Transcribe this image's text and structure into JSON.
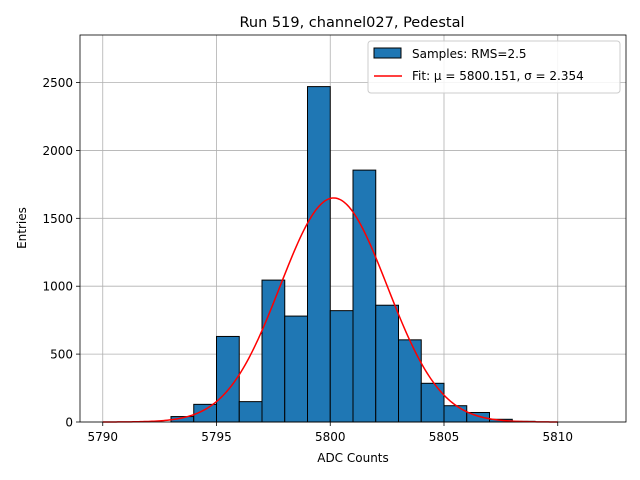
{
  "chart_data": {
    "type": "bar",
    "title": "Run 519, channel027, Pedestal",
    "xlabel": "ADC Counts",
    "ylabel": "Entries",
    "xlim": [
      5789,
      5813
    ],
    "ylim": [
      0,
      2850
    ],
    "xticks": [
      5790,
      5795,
      5800,
      5805,
      5810
    ],
    "yticks": [
      0,
      500,
      1000,
      1500,
      2000,
      2500
    ],
    "grid": true,
    "legend_position": "top-right",
    "bin_width": 1,
    "series": [
      {
        "name": "Samples: RMS=2.5",
        "kind": "histogram",
        "color": "#1f77b4",
        "bins": [
          {
            "x0": 5793,
            "value": 40
          },
          {
            "x0": 5794,
            "value": 130
          },
          {
            "x0": 5795,
            "value": 630
          },
          {
            "x0": 5796,
            "value": 150
          },
          {
            "x0": 5797,
            "value": 1045
          },
          {
            "x0": 5798,
            "value": 780
          },
          {
            "x0": 5799,
            "value": 2470
          },
          {
            "x0": 5800,
            "value": 820
          },
          {
            "x0": 5801,
            "value": 1855
          },
          {
            "x0": 5802,
            "value": 860
          },
          {
            "x0": 5803,
            "value": 605
          },
          {
            "x0": 5804,
            "value": 285
          },
          {
            "x0": 5805,
            "value": 120
          },
          {
            "x0": 5806,
            "value": 70
          },
          {
            "x0": 5807,
            "value": 20
          },
          {
            "x0": 5808,
            "value": 5
          }
        ]
      },
      {
        "name": "Fit: μ = 5800.151, σ = 2.354",
        "kind": "gaussian-fit",
        "color": "#ff0000",
        "mu": 5800.151,
        "sigma": 2.354,
        "amplitude": 1650,
        "x_range": [
          5790,
          5810
        ]
      }
    ]
  }
}
